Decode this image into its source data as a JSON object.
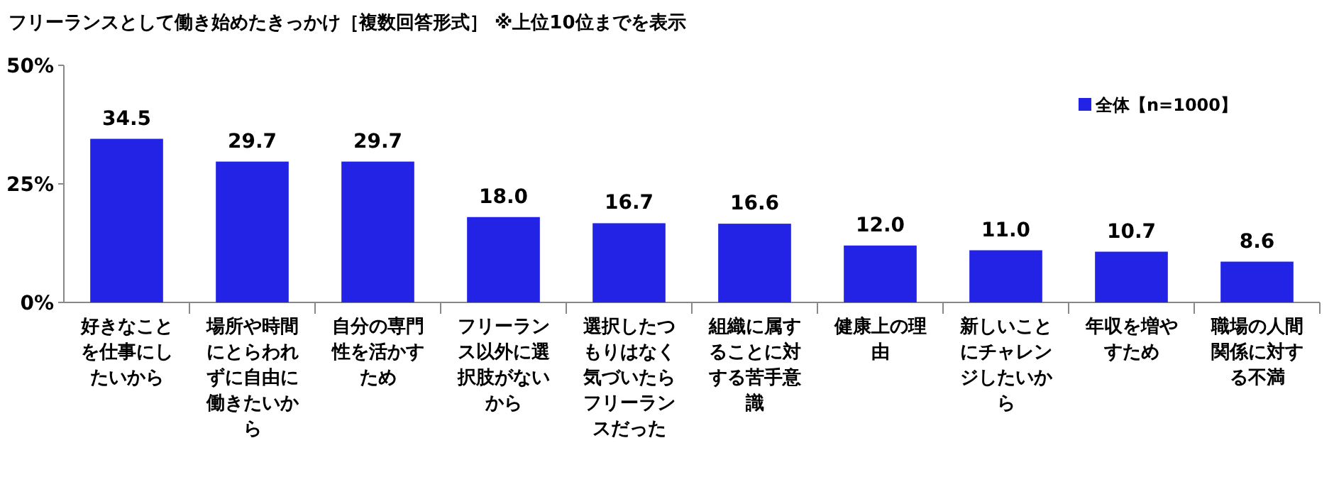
{
  "chart_data": {
    "type": "bar",
    "title": "フリーランスとして働き始めたきっかけ［複数回答形式］ ※上位10位までを表示",
    "categories": [
      "好きなことを仕事にしたいから",
      "場所や時間にとらわれずに自由に働きたいから",
      "自分の専門性を活かすため",
      "フリーランス以外に選択肢がないから",
      "選択したつもりはなく気づいたらフリーランスだった",
      "組織に属することに対する苦手意識",
      "健康上の理由",
      "新しいことにチャレンジしたいから",
      "年収を増やすため",
      "職場の人間関係に対する不満"
    ],
    "series": [
      {
        "name": "全体【n=1000】",
        "color": "#2323e6",
        "values": [
          34.5,
          29.7,
          29.7,
          18.0,
          16.7,
          16.6,
          12.0,
          11.0,
          10.7,
          8.6
        ],
        "value_labels": [
          "34.5",
          "29.7",
          "29.7",
          "18.0",
          "16.7",
          "16.6",
          "12.0",
          "11.0",
          "10.7",
          "8.6"
        ]
      }
    ],
    "ylim": [
      0,
      50
    ],
    "yticks": [
      {
        "value": 0,
        "label": "0%"
      },
      {
        "value": 25,
        "label": "25%"
      },
      {
        "value": 50,
        "label": "50%"
      }
    ],
    "legend": "top right",
    "grid": false
  }
}
